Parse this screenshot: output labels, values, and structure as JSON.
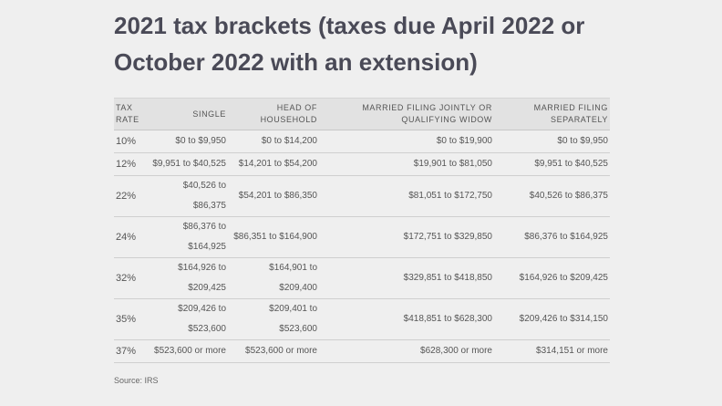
{
  "header": {
    "title": "2021 tax brackets (taxes due April 2022 or October 2022 with an extension)"
  },
  "table": {
    "columns": [
      "TAX RATE",
      "SINGLE",
      "HEAD OF HOUSEHOLD",
      "MARRIED FILING JOINTLY OR QUALIFYING WIDOW",
      "MARRIED FILING SEPARATELY"
    ],
    "rows": [
      [
        "10%",
        "$0 to $9,950",
        "$0 to $14,200",
        "$0 to $19,900",
        "$0 to $9,950"
      ],
      [
        "12%",
        "$9,951 to $40,525",
        "$14,201 to $54,200",
        "$19,901 to $81,050",
        "$9,951 to $40,525"
      ],
      [
        "22%",
        "$40,526 to $86,375",
        "$54,201 to $86,350",
        "$81,051 to $172,750",
        "$40,526 to $86,375"
      ],
      [
        "24%",
        "$86,376 to $164,925",
        "$86,351 to $164,900",
        "$172,751 to $329,850",
        "$86,376 to $164,925"
      ],
      [
        "32%",
        "$164,926 to $209,425",
        "$164,901 to $209,400",
        "$329,851 to $418,850",
        "$164,926 to $209,425"
      ],
      [
        "35%",
        "$209,426 to $523,600",
        "$209,401 to $523,600",
        "$418,851 to $628,300",
        "$209,426 to $314,150"
      ],
      [
        "37%",
        "$523,600 or more",
        "$523,600 or more",
        "$628,300 or more",
        "$314,151 or more"
      ]
    ]
  },
  "footer": {
    "source": "Source: IRS"
  }
}
